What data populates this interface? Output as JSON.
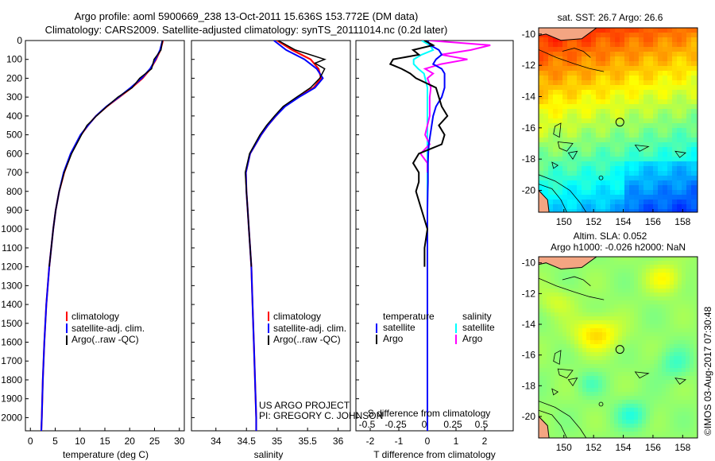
{
  "header": {
    "line1": "Argo profile: aoml 5900669_238 13-Oct-2011 15.636S 153.772E (DM data)",
    "line2": "Climatology: CARS2009. Satellite-adjusted climatology: synTS_20111014.nc (0.2d later)"
  },
  "colors": {
    "climatology": "#ff0000",
    "satellite": "#0000ff",
    "argo": "#000000",
    "sal_satellite": "#00ffff",
    "sal_argo": "#ff00ff",
    "land": "#f4a582"
  },
  "chart_data": [
    {
      "type": "line",
      "id": "temperature-profile",
      "xlabel": "temperature (deg C)",
      "ylabel": "",
      "xlim": [
        -1,
        31
      ],
      "ylim": [
        2070,
        0
      ],
      "xticks": [
        0,
        5,
        10,
        15,
        20,
        25,
        30
      ],
      "yticks": [
        0,
        100,
        200,
        300,
        400,
        500,
        600,
        700,
        800,
        900,
        1000,
        1100,
        1200,
        1300,
        1400,
        1500,
        1600,
        1700,
        1800,
        1900,
        2000
      ],
      "legend": [
        "climatology",
        "satellite-adj. clim.",
        "Argo(..raw -QC)"
      ],
      "depth": [
        0,
        50,
        100,
        150,
        200,
        250,
        300,
        350,
        400,
        450,
        500,
        600,
        700,
        800,
        900,
        1000,
        1200,
        1400,
        1600,
        1800,
        2000,
        2070
      ],
      "series": [
        {
          "name": "climatology",
          "values": [
            26.7,
            26.2,
            25.3,
            24.2,
            22.6,
            20.4,
            17.9,
            15.4,
            13.2,
            11.6,
            10.2,
            8.2,
            6.8,
            5.8,
            5.1,
            4.6,
            3.8,
            3.2,
            2.8,
            2.5,
            2.3,
            2.2
          ]
        },
        {
          "name": "satellite-adj. clim.",
          "values": [
            26.6,
            26.1,
            25.2,
            24.1,
            22.4,
            20.2,
            17.8,
            15.3,
            13.2,
            11.6,
            10.1,
            8.1,
            6.7,
            5.8,
            5.1,
            4.6,
            3.8,
            3.2,
            2.8,
            2.5,
            2.3,
            2.2
          ]
        },
        {
          "name": "Argo(..raw -QC)",
          "depth": [
            0,
            50,
            100,
            150,
            200,
            250,
            300,
            350,
            400,
            450,
            500,
            600,
            700,
            800,
            900,
            1000,
            1200
          ],
          "values": [
            26.6,
            26.3,
            24.9,
            24.4,
            22.0,
            20.5,
            17.6,
            15.4,
            13.3,
            11.4,
            10.3,
            8.3,
            6.8,
            5.8,
            5.1,
            4.6,
            3.8
          ]
        }
      ]
    },
    {
      "type": "line",
      "id": "salinity-profile",
      "xlabel": "salinity",
      "ylabel": "",
      "xlim": [
        33.6,
        36.2
      ],
      "ylim": [
        2070,
        0
      ],
      "xticks": [
        34,
        34.5,
        35,
        35.5,
        36
      ],
      "legend": [
        "climatology",
        "satellite-adj. clim.",
        "Argo(..raw -QC)"
      ],
      "annotation": [
        "US ARGO PROJECT",
        "PI: GREGORY C. JOHNSON"
      ],
      "depth": [
        0,
        50,
        100,
        150,
        200,
        250,
        300,
        350,
        400,
        450,
        500,
        600,
        700,
        800,
        900,
        1000,
        1200,
        1400,
        1600,
        1800,
        2000,
        2070
      ],
      "series": [
        {
          "name": "climatology",
          "values": [
            35.0,
            35.25,
            35.55,
            35.68,
            35.72,
            35.6,
            35.35,
            35.12,
            34.98,
            34.85,
            34.74,
            34.56,
            34.49,
            34.5,
            34.52,
            34.54,
            34.58,
            34.6,
            34.62,
            34.64,
            34.66,
            34.66
          ]
        },
        {
          "name": "satellite-adj. clim.",
          "values": [
            34.95,
            35.15,
            35.45,
            35.65,
            35.75,
            35.62,
            35.36,
            35.13,
            34.98,
            34.85,
            34.74,
            34.56,
            34.49,
            34.5,
            34.52,
            34.54,
            34.58,
            34.6,
            34.62,
            34.64,
            34.66,
            34.66
          ]
        },
        {
          "name": "Argo(..raw -QC)",
          "depth": [
            0,
            50,
            100,
            120,
            150,
            200,
            250,
            300,
            350,
            400,
            450,
            500,
            600,
            700,
            800,
            900,
            1000,
            1200
          ],
          "values": [
            35.02,
            35.3,
            35.78,
            35.62,
            35.78,
            35.7,
            35.55,
            35.32,
            35.1,
            34.96,
            34.83,
            34.72,
            34.55,
            34.48,
            34.5,
            34.52,
            34.54,
            34.58
          ]
        }
      ]
    },
    {
      "type": "line",
      "id": "difference-profile",
      "xlabel": "T difference from climatology",
      "xlabel_s": "S difference from climatology",
      "xlim": [
        -2.5,
        3.0
      ],
      "ylim": [
        2070,
        0
      ],
      "xticks": [
        -2,
        -1,
        0,
        1,
        2
      ],
      "xticks_s": [
        -0.5,
        -0.25,
        0,
        0.25,
        0.5
      ],
      "legend_headers": [
        "temperature",
        "salinity"
      ],
      "legend": [
        "satellite",
        "Argo",
        "satellite",
        "Argo"
      ],
      "depth": [
        0,
        25,
        50,
        75,
        100,
        125,
        150,
        175,
        200,
        250,
        300,
        350,
        400,
        450,
        500,
        550,
        600,
        650,
        700,
        750,
        800,
        900,
        1000,
        1100,
        1200,
        1400,
        1600,
        1800,
        2000,
        2070
      ],
      "series": [
        {
          "name": "T satellite",
          "values": [
            0.0,
            0.1,
            0.4,
            0.5,
            0.3,
            0.2,
            0.5,
            0.6,
            0.6,
            0.6,
            0.5,
            0.3,
            0.2,
            0.15,
            0.1,
            0.05,
            0.03,
            0.02,
            0.02,
            0.02,
            0.01,
            0.0,
            0.0,
            0.0,
            0.0,
            0.0,
            0.0,
            0.0,
            0.0,
            0.0
          ]
        },
        {
          "name": "T Argo",
          "depth": [
            0,
            25,
            50,
            75,
            100,
            125,
            150,
            175,
            200,
            250,
            300,
            350,
            400,
            450,
            500,
            550,
            600,
            650,
            700,
            750,
            800,
            900,
            1000,
            1100,
            1200
          ],
          "values": [
            -0.1,
            0.2,
            -0.5,
            -0.3,
            -1.2,
            -1.3,
            -0.9,
            -0.6,
            -0.4,
            0.3,
            0.4,
            0.5,
            0.7,
            0.4,
            0.6,
            0.5,
            -0.3,
            -0.5,
            -0.3,
            -0.3,
            -0.4,
            -0.2,
            0.0,
            -0.1,
            -0.1
          ]
        },
        {
          "name": "S satellite",
          "values": [
            -0.05,
            0.02,
            0.05,
            -0.05,
            -0.12,
            -0.12,
            -0.08,
            -0.03,
            -0.02,
            0.0,
            0.0,
            0.0,
            0.0,
            0.0,
            0.0,
            0.0,
            0.0,
            0.0,
            0.0,
            0.0,
            0.0,
            0.0,
            0.0,
            0.0,
            0.0,
            0.0,
            0.0,
            0.0,
            0.0,
            0.0
          ]
        },
        {
          "name": "S Argo",
          "depth": [
            0,
            25,
            50,
            75,
            100,
            125,
            150,
            175,
            200,
            250,
            300,
            350,
            400,
            450,
            500,
            550,
            600,
            650,
            700
          ],
          "values": [
            0.02,
            0.55,
            0.38,
            0.12,
            0.35,
            0.12,
            -0.02,
            0.05,
            0.0,
            0.03,
            0.02,
            0.02,
            0.02,
            0.0,
            -0.02,
            0.02,
            -0.06,
            0.0,
            0.0
          ]
        }
      ]
    },
    {
      "type": "heatmap",
      "id": "sst-map",
      "title": "sat. SST: 26.7 Argo: 26.6",
      "xlim": [
        148.3,
        159.0
      ],
      "ylim": [
        -21.4,
        -9.6
      ],
      "xticks": [
        150,
        152,
        154,
        156,
        158
      ],
      "yticks": [
        -10,
        -12,
        -14,
        -16,
        -18,
        -20
      ],
      "marker": {
        "lon": 153.772,
        "lat": -15.636
      }
    },
    {
      "type": "heatmap",
      "id": "sla-map",
      "title": [
        "Altim. SLA: 0.052",
        "Argo h1000: -0.026 h2000: NaN"
      ],
      "xlim": [
        148.3,
        159.0
      ],
      "ylim": [
        -21.4,
        -9.6
      ],
      "xticks": [
        150,
        152,
        154,
        156,
        158
      ],
      "yticks": [
        -10,
        -12,
        -14,
        -16,
        -18,
        -20
      ],
      "marker": {
        "lon": 153.772,
        "lat": -15.636
      }
    }
  ],
  "stamp": "©IMOS 03-Aug-2017 07:30:48"
}
